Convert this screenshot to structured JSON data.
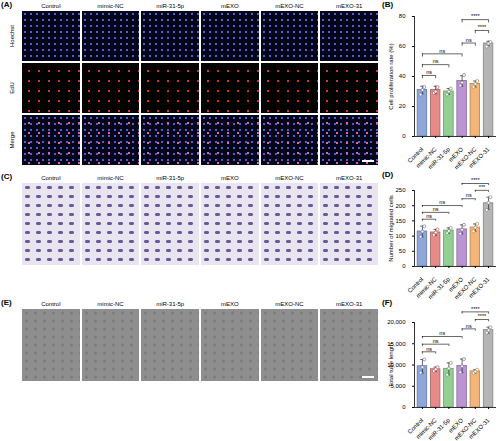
{
  "image_panels": [
    {
      "panel": "(A)",
      "columns": [
        "Control",
        "mimic-NC",
        "miR-31-5p",
        "mEXO",
        "mEXO-NC",
        "mEXO-31"
      ],
      "rows": [
        "Hoechst",
        "EdU",
        "Merge"
      ]
    },
    {
      "panel": "(C)",
      "columns": [
        "Control",
        "mimic-NC",
        "miR-31-5p",
        "mEXO",
        "mEXO-NC",
        "mEXO-31"
      ],
      "rows": []
    },
    {
      "panel": "(E)",
      "columns": [
        "Control",
        "mimic-NC",
        "miR-31-5p",
        "mEXO",
        "mEXO-NC",
        "mEXO-31"
      ],
      "rows": []
    }
  ],
  "chart_data": [
    {
      "panel": "(B)",
      "type": "bar",
      "categories": [
        "Control",
        "mimic-NC",
        "miR-31-5p",
        "mEXO",
        "mEXO-NC",
        "mEXO-31"
      ],
      "values": [
        31,
        31,
        30,
        37,
        35,
        62
      ],
      "errors": [
        2.5,
        2.5,
        2,
        3.5,
        2,
        1.5
      ],
      "points": [
        [
          28,
          31,
          33
        ],
        [
          29,
          30,
          33
        ],
        [
          28,
          30,
          32
        ],
        [
          34,
          36,
          41
        ],
        [
          33,
          35,
          37
        ],
        [
          60,
          62,
          63
        ]
      ],
      "colors": [
        "#8ea6d9",
        "#e88a8a",
        "#93cf93",
        "#bb94d6",
        "#f4b678",
        "#b5b5b5"
      ],
      "y_label": "Cell proliferation rate (%)",
      "ylim": [
        0,
        80
      ],
      "yticks": [
        0,
        20,
        40,
        60,
        80
      ],
      "comparisons": [
        {
          "from": "Control",
          "to": "mimic-NC",
          "label": "ns"
        },
        {
          "from": "Control",
          "to": "miR-31-5p",
          "label": "ns"
        },
        {
          "from": "Control",
          "to": "mEXO",
          "label": "ns"
        },
        {
          "from": "mEXO",
          "to": "mEXO-NC",
          "label": "ns"
        },
        {
          "from": "mEXO-NC",
          "to": "mEXO-31",
          "label": "****"
        },
        {
          "from": "mEXO",
          "to": "mEXO-31",
          "label": "****"
        }
      ]
    },
    {
      "panel": "(D)",
      "type": "bar",
      "categories": [
        "Control",
        "mimic-NC",
        "miR-31-5p",
        "mEXO",
        "mEXO-NC",
        "mEXO-31"
      ],
      "values": [
        115,
        112,
        118,
        122,
        128,
        208
      ],
      "errors": [
        18,
        10,
        9,
        15,
        12,
        20
      ],
      "points": [
        [
          98,
          115,
          132
        ],
        [
          104,
          112,
          122
        ],
        [
          110,
          117,
          127
        ],
        [
          108,
          121,
          137
        ],
        [
          116,
          128,
          140
        ],
        [
          186,
          210,
          228
        ]
      ],
      "colors": [
        "#8ea6d9",
        "#e88a8a",
        "#93cf93",
        "#bb94d6",
        "#f4b678",
        "#b5b5b5"
      ],
      "y_label": "Number of migrated cells",
      "ylim": [
        0,
        250
      ],
      "yticks": [
        0,
        50,
        100,
        150,
        200,
        250
      ],
      "comparisons": [
        {
          "from": "Control",
          "to": "mimic-NC",
          "label": "ns"
        },
        {
          "from": "Control",
          "to": "miR-31-5p",
          "label": "ns"
        },
        {
          "from": "Control",
          "to": "mEXO",
          "label": "ns"
        },
        {
          "from": "mEXO",
          "to": "mEXO-NC",
          "label": "ns"
        },
        {
          "from": "mEXO-NC",
          "to": "mEXO-31",
          "label": "***"
        },
        {
          "from": "mEXO",
          "to": "mEXO-31",
          "label": "****"
        }
      ]
    },
    {
      "panel": "(F)",
      "type": "bar",
      "categories": [
        "Control",
        "mimic-NC",
        "miR-31-5p",
        "mEXO",
        "mEXO-NC",
        "mEXO-31"
      ],
      "values": [
        9700,
        9000,
        9100,
        9800,
        8500,
        18200
      ],
      "errors": [
        1600,
        500,
        1400,
        1600,
        400,
        700
      ],
      "points": [
        [
          8200,
          9500,
          11300
        ],
        [
          8600,
          9000,
          9500
        ],
        [
          7700,
          9200,
          10500
        ],
        [
          8300,
          9700,
          11400
        ],
        [
          8100,
          8500,
          8900
        ],
        [
          17600,
          18200,
          18900
        ]
      ],
      "colors": [
        "#8ea6d9",
        "#e88a8a",
        "#93cf93",
        "#bb94d6",
        "#f4b678",
        "#b5b5b5"
      ],
      "y_label": "Total tube length",
      "ylim": [
        0,
        20000
      ],
      "yticks": [
        0,
        {
          "value": 5000,
          "label": "5,000"
        },
        {
          "value": 10000,
          "label": "10,000"
        },
        {
          "value": 15000,
          "label": "15,000"
        },
        {
          "value": 20000,
          "label": "20,000"
        }
      ],
      "comparisons": [
        {
          "from": "Control",
          "to": "mimic-NC",
          "label": "ns"
        },
        {
          "from": "Control",
          "to": "miR-31-5p",
          "label": "ns"
        },
        {
          "from": "Control",
          "to": "mEXO",
          "label": "ns"
        },
        {
          "from": "mEXO",
          "to": "mEXO-NC",
          "label": "ns"
        },
        {
          "from": "mEXO-NC",
          "to": "mEXO-31",
          "label": "****"
        },
        {
          "from": "mEXO",
          "to": "mEXO-31",
          "label": "****"
        }
      ]
    }
  ]
}
